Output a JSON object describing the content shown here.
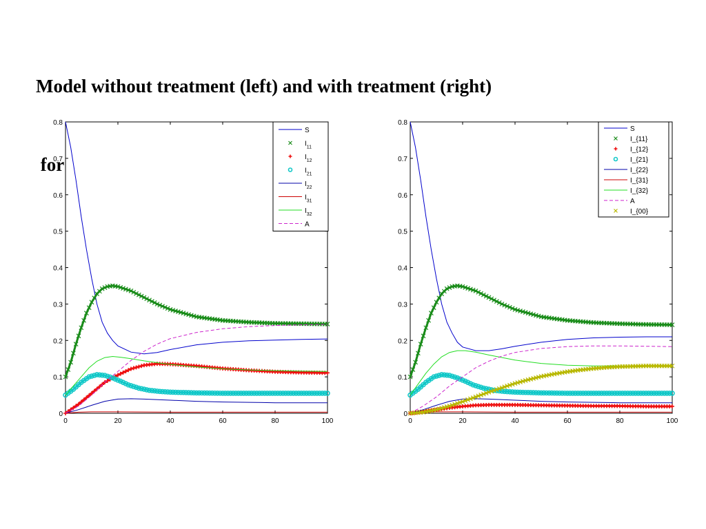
{
  "title": {
    "line1": "Model without treatment (left) and with treatment (right)",
    "line2": " for a constant population model"
  },
  "chart_data": [
    {
      "type": "line",
      "position": "left",
      "xlim": [
        0,
        100
      ],
      "ylim": [
        0,
        0.8
      ],
      "xticks": [
        0,
        20,
        40,
        60,
        80,
        100
      ],
      "yticks": [
        0,
        0.1,
        0.2,
        0.3,
        0.4,
        0.5,
        0.6,
        0.7,
        0.8
      ],
      "xtick_labels": [
        "0",
        "20",
        "40",
        "60",
        "80",
        "100"
      ],
      "ytick_labels": [
        "0",
        "0.1",
        "0.2",
        "0.3",
        "0.4",
        "0.5",
        "0.6",
        "0.7",
        "0.8"
      ],
      "grid": false,
      "legend_position": "top-right",
      "series": [
        {
          "name": "S",
          "legend_base": "S",
          "legend_sub": "",
          "color": "#0000cc",
          "style": "solid",
          "marker": "none",
          "x": [
            0,
            2,
            4,
            6,
            8,
            10,
            12,
            14,
            16,
            18,
            20,
            25,
            30,
            35,
            40,
            50,
            60,
            70,
            80,
            90,
            100
          ],
          "y": [
            0.8,
            0.73,
            0.64,
            0.54,
            0.45,
            0.37,
            0.3,
            0.25,
            0.22,
            0.2,
            0.185,
            0.168,
            0.163,
            0.167,
            0.175,
            0.188,
            0.195,
            0.199,
            0.201,
            0.203,
            0.204
          ]
        },
        {
          "name": "I_11",
          "legend_base": "I",
          "legend_sub": "11",
          "color": "#1a8c1a",
          "style": "marker",
          "marker": "x",
          "x": [
            0,
            2,
            4,
            6,
            8,
            10,
            12,
            14,
            16,
            18,
            20,
            25,
            30,
            35,
            40,
            50,
            60,
            70,
            80,
            90,
            100
          ],
          "y": [
            0.1,
            0.14,
            0.19,
            0.235,
            0.275,
            0.305,
            0.328,
            0.342,
            0.348,
            0.35,
            0.348,
            0.336,
            0.318,
            0.3,
            0.285,
            0.265,
            0.255,
            0.25,
            0.247,
            0.246,
            0.245
          ]
        },
        {
          "name": "I_12",
          "legend_base": "I",
          "legend_sub": "12",
          "color": "#ee1111",
          "style": "marker",
          "marker": "+",
          "x": [
            0,
            5,
            10,
            15,
            20,
            25,
            30,
            35,
            40,
            50,
            60,
            70,
            80,
            90,
            100
          ],
          "y": [
            0,
            0.025,
            0.055,
            0.085,
            0.105,
            0.122,
            0.132,
            0.136,
            0.135,
            0.13,
            0.123,
            0.118,
            0.114,
            0.112,
            0.111
          ]
        },
        {
          "name": "I_21",
          "legend_base": "I",
          "legend_sub": "21",
          "color": "#11c8c8",
          "style": "marker",
          "marker": "o",
          "x": [
            0,
            3,
            6,
            9,
            12,
            15,
            18,
            21,
            24,
            28,
            32,
            36,
            40,
            50,
            60,
            70,
            80,
            90,
            100
          ],
          "y": [
            0.05,
            0.066,
            0.085,
            0.1,
            0.106,
            0.104,
            0.097,
            0.088,
            0.078,
            0.069,
            0.063,
            0.06,
            0.058,
            0.056,
            0.055,
            0.055,
            0.055,
            0.055,
            0.055
          ]
        },
        {
          "name": "I_22",
          "legend_base": "I",
          "legend_sub": "22",
          "color": "#0000aa",
          "style": "solid",
          "marker": "none",
          "x": [
            0,
            5,
            10,
            15,
            20,
            25,
            30,
            40,
            50,
            60,
            70,
            80,
            90,
            100
          ],
          "y": [
            0,
            0.01,
            0.022,
            0.033,
            0.039,
            0.04,
            0.039,
            0.036,
            0.033,
            0.031,
            0.03,
            0.029,
            0.029,
            0.029
          ]
        },
        {
          "name": "I_31",
          "legend_base": "I",
          "legend_sub": "31",
          "color": "#cc0000",
          "style": "solid",
          "marker": "none",
          "x": [
            0,
            5,
            10,
            20,
            40,
            60,
            80,
            100
          ],
          "y": [
            0,
            0.003,
            0.004,
            0.004,
            0.003,
            0.003,
            0.003,
            0.003
          ]
        },
        {
          "name": "I_32",
          "legend_base": "I",
          "legend_sub": "32",
          "color": "#22dd22",
          "style": "solid",
          "marker": "none",
          "x": [
            0,
            3,
            6,
            9,
            12,
            15,
            18,
            21,
            25,
            30,
            40,
            50,
            60,
            70,
            80,
            90,
            100
          ],
          "y": [
            0.05,
            0.075,
            0.1,
            0.125,
            0.143,
            0.153,
            0.156,
            0.154,
            0.15,
            0.144,
            0.134,
            0.127,
            0.122,
            0.119,
            0.117,
            0.116,
            0.115
          ]
        },
        {
          "name": "A",
          "legend_base": "A",
          "legend_sub": "",
          "color": "#cc22cc",
          "style": "dashed",
          "marker": "none",
          "x": [
            0,
            5,
            10,
            15,
            20,
            25,
            30,
            35,
            40,
            50,
            60,
            70,
            80,
            90,
            100
          ],
          "y": [
            0,
            0.02,
            0.05,
            0.085,
            0.115,
            0.145,
            0.17,
            0.19,
            0.205,
            0.222,
            0.232,
            0.238,
            0.241,
            0.243,
            0.244
          ]
        }
      ]
    },
    {
      "type": "line",
      "position": "right",
      "xlim": [
        0,
        100
      ],
      "ylim": [
        0,
        0.8
      ],
      "xticks": [
        0,
        20,
        40,
        60,
        80,
        100
      ],
      "yticks": [
        0,
        0.1,
        0.2,
        0.3,
        0.4,
        0.5,
        0.6,
        0.7,
        0.8
      ],
      "xtick_labels": [
        "0",
        "20",
        "40",
        "60",
        "80",
        "100"
      ],
      "ytick_labels": [
        "0",
        "0.1",
        "0.2",
        "0.3",
        "0.4",
        "0.5",
        "0.6",
        "0.7",
        "0.8"
      ],
      "grid": false,
      "legend_position": "top-right",
      "series": [
        {
          "name": "S",
          "legend_base": "S",
          "legend_sub": "",
          "color": "#0000cc",
          "style": "solid",
          "marker": "none",
          "x": [
            0,
            2,
            4,
            6,
            8,
            10,
            12,
            14,
            16,
            18,
            20,
            25,
            30,
            35,
            40,
            50,
            60,
            70,
            80,
            90,
            100
          ],
          "y": [
            0.8,
            0.73,
            0.64,
            0.54,
            0.45,
            0.37,
            0.3,
            0.25,
            0.22,
            0.195,
            0.182,
            0.172,
            0.172,
            0.177,
            0.184,
            0.195,
            0.203,
            0.207,
            0.209,
            0.21,
            0.21
          ]
        },
        {
          "name": "I_{11}",
          "legend_base": "I_{11}",
          "legend_sub": "",
          "color": "#1a8c1a",
          "style": "marker",
          "marker": "x",
          "x": [
            0,
            2,
            4,
            6,
            8,
            10,
            12,
            14,
            16,
            18,
            20,
            25,
            30,
            35,
            40,
            50,
            60,
            70,
            80,
            90,
            100
          ],
          "y": [
            0.1,
            0.14,
            0.19,
            0.235,
            0.275,
            0.305,
            0.328,
            0.342,
            0.348,
            0.35,
            0.348,
            0.336,
            0.318,
            0.3,
            0.285,
            0.265,
            0.255,
            0.249,
            0.246,
            0.244,
            0.243
          ]
        },
        {
          "name": "I_{12}",
          "legend_base": "I_{12}",
          "legend_sub": "",
          "color": "#ee1111",
          "style": "marker",
          "marker": "+",
          "x": [
            0,
            5,
            10,
            15,
            20,
            25,
            30,
            35,
            40,
            50,
            60,
            70,
            80,
            90,
            100
          ],
          "y": [
            0,
            0.005,
            0.01,
            0.015,
            0.019,
            0.022,
            0.023,
            0.023,
            0.023,
            0.022,
            0.021,
            0.02,
            0.02,
            0.019,
            0.019
          ]
        },
        {
          "name": "I_{21}",
          "legend_base": "I_{21}",
          "legend_sub": "",
          "color": "#11c8c8",
          "style": "marker",
          "marker": "o",
          "x": [
            0,
            3,
            6,
            9,
            12,
            15,
            18,
            21,
            24,
            28,
            32,
            36,
            40,
            50,
            60,
            70,
            80,
            90,
            100
          ],
          "y": [
            0.05,
            0.066,
            0.085,
            0.1,
            0.106,
            0.104,
            0.097,
            0.088,
            0.078,
            0.069,
            0.063,
            0.06,
            0.058,
            0.056,
            0.055,
            0.055,
            0.055,
            0.055,
            0.055
          ]
        },
        {
          "name": "I_{22}",
          "legend_base": "I_{22}",
          "legend_sub": "",
          "color": "#0000aa",
          "style": "solid",
          "marker": "none",
          "x": [
            0,
            5,
            10,
            15,
            20,
            25,
            30,
            40,
            50,
            60,
            70,
            80,
            90,
            100
          ],
          "y": [
            0,
            0.01,
            0.022,
            0.033,
            0.039,
            0.04,
            0.039,
            0.036,
            0.033,
            0.031,
            0.03,
            0.029,
            0.029,
            0.029
          ]
        },
        {
          "name": "I_{31}",
          "legend_base": "I_{31}",
          "legend_sub": "",
          "color": "#cc0000",
          "style": "solid",
          "marker": "none",
          "x": [
            0,
            5,
            10,
            20,
            40,
            60,
            80,
            100
          ],
          "y": [
            0,
            0.003,
            0.004,
            0.004,
            0.003,
            0.003,
            0.003,
            0.003
          ]
        },
        {
          "name": "I_{32}",
          "legend_base": "I_{32}",
          "legend_sub": "",
          "color": "#22dd22",
          "style": "solid",
          "marker": "none",
          "x": [
            0,
            3,
            6,
            9,
            12,
            15,
            18,
            21,
            25,
            30,
            40,
            50,
            60,
            70,
            80,
            90,
            100
          ],
          "y": [
            0.05,
            0.08,
            0.11,
            0.135,
            0.155,
            0.167,
            0.172,
            0.172,
            0.168,
            0.16,
            0.146,
            0.137,
            0.132,
            0.13,
            0.13,
            0.13,
            0.13
          ]
        },
        {
          "name": "A",
          "legend_base": "A",
          "legend_sub": "",
          "color": "#cc22cc",
          "style": "dashed",
          "marker": "none",
          "x": [
            0,
            5,
            10,
            15,
            20,
            25,
            30,
            35,
            40,
            50,
            60,
            70,
            80,
            90,
            100
          ],
          "y": [
            0,
            0.02,
            0.045,
            0.075,
            0.1,
            0.125,
            0.143,
            0.157,
            0.167,
            0.178,
            0.183,
            0.185,
            0.185,
            0.184,
            0.183
          ]
        },
        {
          "name": "I_{00}",
          "legend_base": "I_{00}",
          "legend_sub": "",
          "color": "#b8b800",
          "style": "marker",
          "marker": "x",
          "x": [
            0,
            5,
            10,
            15,
            20,
            25,
            30,
            35,
            40,
            45,
            50,
            55,
            60,
            65,
            70,
            75,
            80,
            85,
            90,
            95,
            100
          ],
          "y": [
            0,
            0.003,
            0.01,
            0.02,
            0.032,
            0.045,
            0.058,
            0.07,
            0.082,
            0.092,
            0.101,
            0.108,
            0.114,
            0.119,
            0.123,
            0.126,
            0.128,
            0.129,
            0.13,
            0.13,
            0.13
          ]
        }
      ]
    }
  ]
}
